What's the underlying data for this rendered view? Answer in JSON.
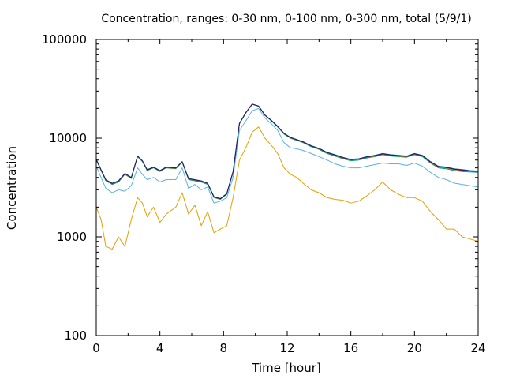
{
  "chart_data": {
    "type": "line",
    "title": "Concentration, ranges: 0-30 nm, 0-100 nm, 0-300 nm, total (5/9/1)",
    "xlabel": "Time [hour]",
    "ylabel": "Concentration",
    "xlim": [
      0,
      24
    ],
    "ylim": [
      100,
      100000
    ],
    "yscale": "log",
    "grid": false,
    "legend": "none",
    "x_ticks": [
      {
        "value": 0,
        "label": "0"
      },
      {
        "value": 4,
        "label": "4"
      },
      {
        "value": 8,
        "label": "8"
      },
      {
        "value": 12,
        "label": "12"
      },
      {
        "value": 16,
        "label": "16"
      },
      {
        "value": 20,
        "label": "20"
      },
      {
        "value": 24,
        "label": "24"
      }
    ],
    "y_ticks": [
      {
        "value": 100,
        "label": "100"
      },
      {
        "value": 1000,
        "label": "1000"
      },
      {
        "value": 10000,
        "label": "10000"
      },
      {
        "value": 100000,
        "label": "100000"
      }
    ],
    "x": [
      0,
      0.3,
      0.6,
      1.0,
      1.4,
      1.8,
      2.2,
      2.6,
      2.9,
      3.2,
      3.6,
      4.0,
      4.4,
      5.0,
      5.4,
      5.8,
      6.2,
      6.6,
      7.0,
      7.4,
      7.8,
      8.2,
      8.6,
      9.0,
      9.4,
      9.8,
      10.2,
      10.6,
      11.0,
      11.4,
      11.8,
      12.2,
      12.6,
      13.0,
      13.5,
      14.0,
      14.5,
      15.0,
      15.5,
      16.0,
      16.5,
      17.0,
      17.5,
      18.0,
      18.5,
      19.0,
      19.5,
      20.0,
      20.5,
      21.0,
      21.5,
      22.0,
      22.5,
      23.0,
      23.5,
      24.0
    ],
    "series": [
      {
        "color": "#e69f00",
        "values": [
          2000,
          1500,
          800,
          750,
          1000,
          800,
          1500,
          2500,
          2200,
          1600,
          2000,
          1400,
          1700,
          2000,
          2800,
          1700,
          2100,
          1300,
          1800,
          1100,
          1200,
          1300,
          2500,
          6000,
          8000,
          11500,
          13000,
          10000,
          8500,
          7000,
          5000,
          4300,
          4000,
          3500,
          3000,
          2800,
          2500,
          2400,
          2350,
          2200,
          2300,
          2600,
          3000,
          3600,
          3000,
          2700,
          2500,
          2500,
          2300,
          1800,
          1500,
          1200,
          1200,
          1000,
          950,
          900
        ]
      },
      {
        "color": "#56b4e9",
        "values": [
          5200,
          4000,
          3100,
          2800,
          3000,
          2900,
          3300,
          5000,
          4300,
          3800,
          4000,
          3600,
          3800,
          3800,
          5000,
          3100,
          3400,
          3000,
          3200,
          2200,
          2300,
          2500,
          4000,
          12000,
          15000,
          19000,
          20000,
          16000,
          14000,
          12000,
          9000,
          8000,
          7800,
          7500,
          7000,
          6500,
          6000,
          5500,
          5200,
          5000,
          5000,
          5200,
          5400,
          5600,
          5500,
          5500,
          5300,
          5600,
          5200,
          4500,
          4000,
          3800,
          3500,
          3400,
          3300,
          3200
        ]
      },
      {
        "color": "#009e73",
        "values": [
          6000,
          4700,
          3700,
          3400,
          3600,
          4300,
          3900,
          6500,
          5800,
          4700,
          5000,
          4600,
          5000,
          4900,
          5700,
          3800,
          3700,
          3600,
          3400,
          2500,
          2400,
          2700,
          4500,
          14000,
          18000,
          22000,
          21000,
          17000,
          15000,
          13000,
          11000,
          10000,
          9500,
          9000,
          8200,
          7700,
          7000,
          6600,
          6200,
          5900,
          6000,
          6300,
          6500,
          6800,
          6600,
          6500,
          6400,
          6800,
          6500,
          5600,
          5000,
          4900,
          4700,
          4600,
          4550,
          4500
        ]
      },
      {
        "color": "#0072b2",
        "values": [
          6100,
          4800,
          3800,
          3500,
          3700,
          4400,
          4000,
          6600,
          5900,
          4800,
          5100,
          4700,
          5100,
          5000,
          5800,
          3900,
          3800,
          3700,
          3500,
          2550,
          2450,
          2750,
          4600,
          14200,
          18200,
          22200,
          21200,
          17200,
          15200,
          13200,
          11200,
          10200,
          9700,
          9200,
          8400,
          7900,
          7200,
          6800,
          6400,
          6100,
          6200,
          6500,
          6700,
          7000,
          6800,
          6700,
          6600,
          7000,
          6700,
          5800,
          5200,
          5100,
          4900,
          4800,
          4700,
          4650
        ]
      },
      {
        "color": "#d55e00",
        "values": [
          6050,
          4750,
          3750,
          3450,
          3650,
          4350,
          3950,
          6550,
          5850,
          4750,
          5050,
          4650,
          5050,
          4950,
          5750,
          3850,
          3750,
          3650,
          3450,
          2520,
          2420,
          2720,
          4550,
          14100,
          18100,
          22100,
          21100,
          17100,
          15100,
          13100,
          11100,
          10100,
          9600,
          9100,
          8300,
          7800,
          7100,
          6700,
          6300,
          6000,
          6100,
          6400,
          6600,
          6900,
          6700,
          6600,
          6500,
          6900,
          6600,
          5700,
          5100,
          5000,
          4800,
          4700,
          4620,
          4580
        ]
      },
      {
        "color": "#1a1a6e",
        "values": [
          6080,
          4780,
          3780,
          3480,
          3680,
          4380,
          3980,
          6580,
          5880,
          4780,
          5080,
          4680,
          5080,
          4980,
          5780,
          3880,
          3780,
          3680,
          3480,
          2540,
          2440,
          2740,
          4580,
          14150,
          18150,
          22150,
          21150,
          17150,
          15150,
          13150,
          11150,
          10150,
          9650,
          9150,
          8350,
          7850,
          7150,
          6750,
          6350,
          6050,
          6150,
          6450,
          6650,
          6950,
          6750,
          6650,
          6550,
          6950,
          6650,
          5750,
          5150,
          5050,
          4850,
          4750,
          4660,
          4610
        ]
      }
    ]
  }
}
